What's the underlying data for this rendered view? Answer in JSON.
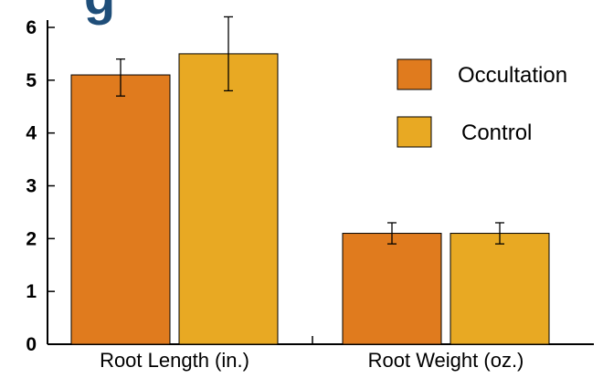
{
  "chart_data": {
    "type": "bar",
    "title_fragment": "g",
    "categories": [
      "Root Length (in.)",
      "Root Weight (oz.)"
    ],
    "series": [
      {
        "name": "Occultation",
        "color": "#e07b1e",
        "values": [
          5.1,
          2.1
        ],
        "error_low": [
          4.7,
          1.9
        ],
        "error_high": [
          5.4,
          2.3
        ]
      },
      {
        "name": "Control",
        "color": "#e8a923",
        "values": [
          5.5,
          2.1
        ],
        "error_low": [
          4.8,
          1.9
        ],
        "error_high": [
          6.2,
          2.3
        ]
      }
    ],
    "ylim": [
      0,
      6
    ],
    "yticks": [
      "0",
      "1",
      "2",
      "3",
      "4",
      "5",
      "6"
    ],
    "xlabel": "",
    "ylabel": "",
    "grid": false,
    "legend_position": "top-right",
    "axis_color": "#000000",
    "title_color": "#1f4e79"
  }
}
